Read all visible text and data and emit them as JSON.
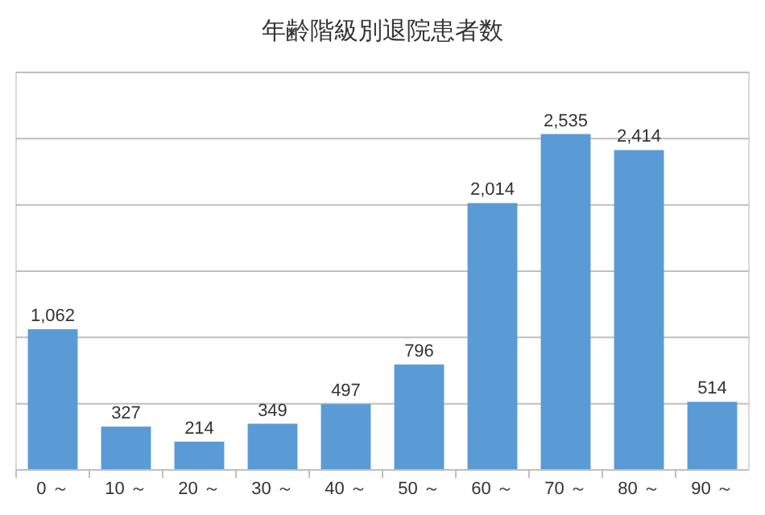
{
  "chart_data": {
    "type": "bar",
    "title": "年齢階級別退院患者数",
    "categories": [
      "0 ～",
      "10 ～",
      "20 ～",
      "30 ～",
      "40 ～",
      "50 ～",
      "60 ～",
      "70 ～",
      "80 ～",
      "90 ～"
    ],
    "values": [
      1062,
      327,
      214,
      349,
      497,
      796,
      2014,
      2535,
      2414,
      514
    ],
    "value_labels": [
      "1,062",
      "327",
      "214",
      "349",
      "497",
      "796",
      "2,014",
      "2,535",
      "2,414",
      "514"
    ],
    "color": "#5b9bd5",
    "grid": "y",
    "tick_labels": "x",
    "ylim": [
      0,
      3000
    ],
    "yticks": [
      {
        "value": 0,
        "label": null
      },
      {
        "value": 500,
        "label": null
      },
      {
        "value": 1000,
        "label": null
      },
      {
        "value": 1500,
        "label": null
      },
      {
        "value": 2000,
        "label": null
      },
      {
        "value": 2500,
        "label": null
      },
      {
        "value": 3000,
        "label": null
      }
    ]
  }
}
